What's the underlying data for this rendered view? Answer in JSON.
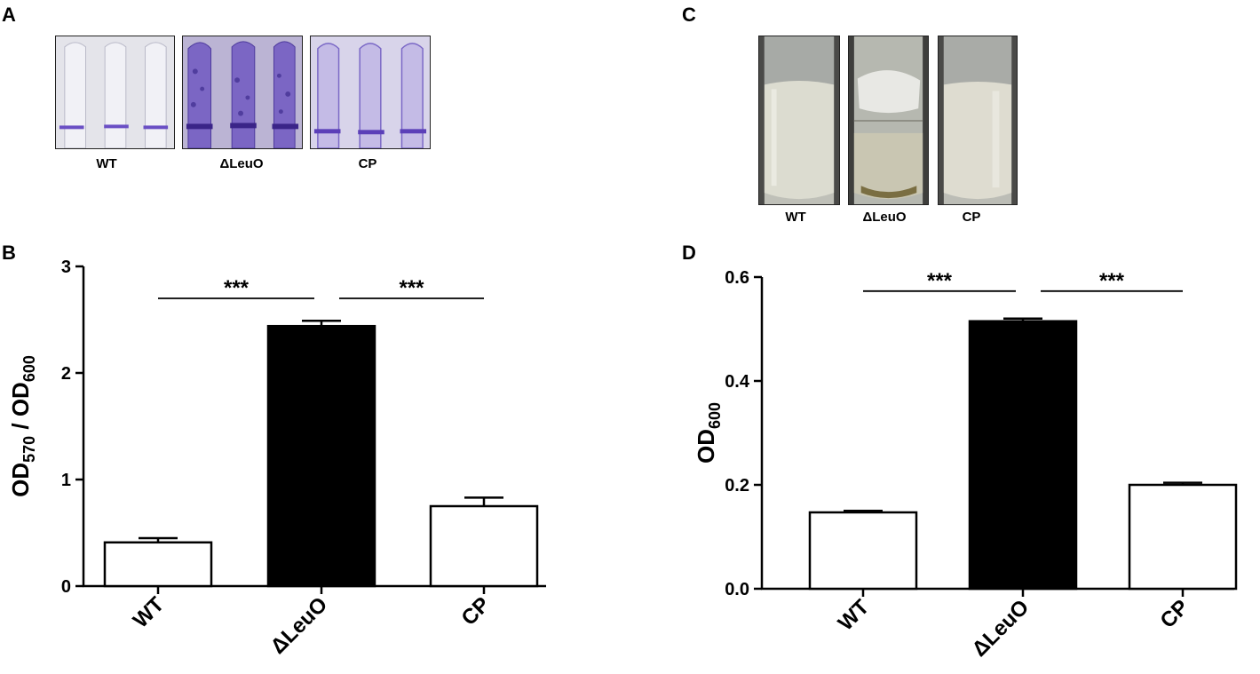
{
  "panels": {
    "A": {
      "letter": "A",
      "labels": [
        "WT",
        "ΔLeuO",
        "CP"
      ],
      "stain_color": "#5b3fb8"
    },
    "C": {
      "letter": "C",
      "labels": [
        "WT",
        "ΔLeuO",
        "CP"
      ]
    },
    "B": {
      "letter": "B"
    },
    "D": {
      "letter": "D"
    }
  },
  "chart_data": [
    {
      "panel": "B",
      "type": "bar",
      "categories": [
        "WT",
        "ΔLeuO",
        "CP"
      ],
      "values": [
        0.41,
        2.44,
        0.75
      ],
      "errors": [
        0.04,
        0.05,
        0.08
      ],
      "bar_fills": [
        "#ffffff",
        "#000000",
        "#ffffff"
      ],
      "ylabel_parts": {
        "a": "OD",
        "a_sub": "570",
        "sep": " / ",
        "b": "OD",
        "b_sub": "600"
      },
      "ylim": [
        0,
        3
      ],
      "yticks": [
        "0",
        "1",
        "2",
        "3"
      ],
      "ytick_values": [
        0,
        1,
        2,
        3
      ],
      "significance": [
        {
          "from": 0,
          "to": 1,
          "label": "***",
          "level": 2.7
        },
        {
          "from": 1,
          "to": 2,
          "label": "***",
          "level": 2.7
        }
      ]
    },
    {
      "panel": "D",
      "type": "bar",
      "categories": [
        "WT",
        "ΔLeuO",
        "CP"
      ],
      "values": [
        0.147,
        0.515,
        0.2
      ],
      "errors": [
        0.003,
        0.005,
        0.004
      ],
      "bar_fills": [
        "#ffffff",
        "#000000",
        "#ffffff"
      ],
      "ylabel_parts": {
        "a": "OD",
        "a_sub": "600"
      },
      "ylim": [
        0,
        0.6
      ],
      "yticks": [
        "0.0",
        "0.2",
        "0.4",
        "0.6"
      ],
      "ytick_values": [
        0,
        0.2,
        0.4,
        0.6
      ],
      "significance": [
        {
          "from": 0,
          "to": 1,
          "label": "***",
          "level": 0.573
        },
        {
          "from": 1,
          "to": 2,
          "label": "***",
          "level": 0.573
        }
      ]
    }
  ]
}
